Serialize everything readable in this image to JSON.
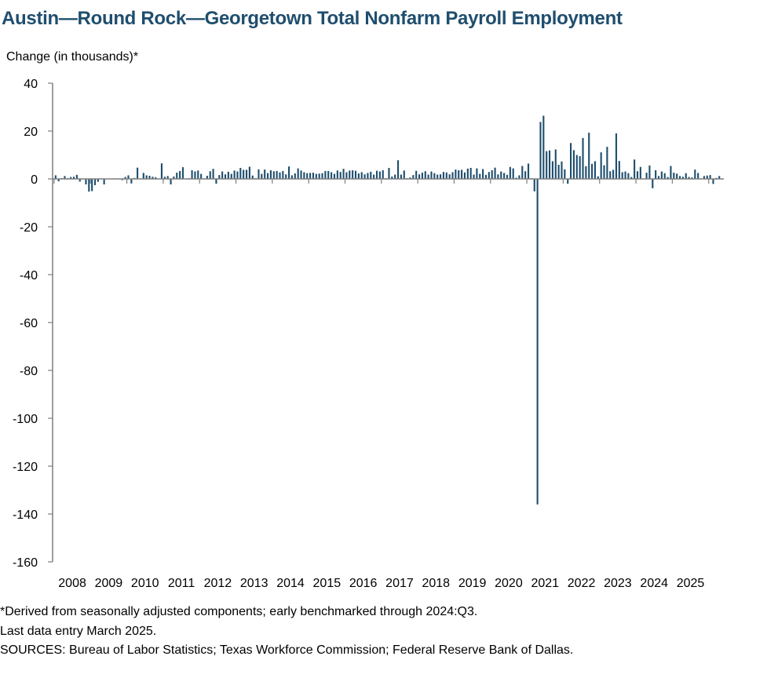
{
  "title": "Austin—Round Rock—Georgetown Total Nonfarm Payroll Employment",
  "notes": [
    "*Derived from seasonally adjusted components; early benchmarked through 2024:Q3.",
    "Last data entry March 2025.",
    "SOURCES: Bureau of Labor Statistics; Texas Workforce Commission; Federal Reserve Bank of Dallas."
  ],
  "colors": {
    "bar": "#1f4e6e",
    "title": "#1f4e6e",
    "axis": "#7f7f7f"
  },
  "chart_data": {
    "type": "bar",
    "ylabel": "Change (in thousands)*",
    "xlabel": "",
    "ylim": [
      -160,
      40
    ],
    "yticks": [
      "40",
      "20",
      "0",
      "-20",
      "-40",
      "-60",
      "-80",
      "-100",
      "-120",
      "-140",
      "-160"
    ],
    "xticks": [
      "2008",
      "2009",
      "2010",
      "2011",
      "2012",
      "2013",
      "2014",
      "2015",
      "2016",
      "2017",
      "2018",
      "2019",
      "2020",
      "2021",
      "2022",
      "2023",
      "2024",
      "2025"
    ],
    "x_start": "2008-01",
    "x_end": "2025-03",
    "frequency": "monthly",
    "grid": false,
    "legend": "none",
    "series": [
      {
        "values": [
          1.5,
          -1.0,
          0.3,
          1.2,
          0.3,
          0.8,
          0.9,
          1.7,
          -1.1,
          0.2,
          -2.3,
          -5.3,
          -5.1,
          -2.6,
          -1.2,
          0.2,
          -2.3,
          0.1,
          0.1,
          -0.1,
          0.2,
          0.2,
          -0.5,
          0.8,
          1.5,
          -1.9,
          0.4,
          4.7,
          0.1,
          2.5,
          1.5,
          1.3,
          0.9,
          0.7,
          0.2,
          6.5,
          0.9,
          1.2,
          -2.3,
          1.0,
          2.6,
          3.3,
          4.9,
          0.1,
          0.3,
          3.6,
          3.1,
          3.5,
          2.1,
          0.2,
          1.3,
          3.2,
          4.2,
          -2.0,
          1.6,
          3.1,
          1.9,
          3.0,
          2.1,
          3.5,
          3.1,
          4.6,
          3.8,
          3.8,
          5.1,
          1.4,
          0.3,
          4.0,
          2.1,
          3.9,
          2.4,
          3.6,
          3.2,
          3.3,
          2.7,
          3.3,
          1.9,
          5.2,
          1.5,
          2.3,
          4.4,
          3.5,
          2.8,
          2.4,
          2.5,
          2.6,
          2.1,
          2.2,
          2.4,
          3.3,
          3.3,
          2.8,
          2.1,
          3.5,
          2.9,
          4.2,
          2.8,
          3.5,
          3.6,
          3.4,
          2.3,
          2.8,
          1.9,
          2.5,
          3.0,
          1.8,
          3.4,
          3.1,
          3.6,
          0.3,
          4.6,
          1.0,
          1.8,
          7.8,
          1.8,
          3.5,
          0.3,
          0.6,
          1.6,
          3.4,
          1.9,
          2.6,
          3.2,
          1.8,
          3.1,
          2.4,
          1.8,
          1.9,
          2.9,
          2.7,
          1.9,
          2.8,
          3.9,
          3.6,
          3.8,
          2.7,
          4.3,
          4.6,
          1.8,
          4.4,
          2.1,
          4.1,
          1.7,
          2.9,
          3.6,
          4.7,
          1.9,
          3.1,
          2.5,
          1.7,
          5.0,
          4.4,
          0.5,
          1.5,
          5.4,
          3.2,
          6.4,
          0.3,
          -5.2,
          -136.0,
          23.8,
          26.4,
          11.6,
          11.9,
          7.4,
          12.3,
          5.9,
          7.3,
          4.0,
          -2.0,
          15.0,
          12.0,
          10.0,
          9.5,
          17.1,
          5.3,
          19.3,
          6.3,
          7.4,
          1.1,
          11.1,
          5.7,
          13.4,
          3.2,
          3.8,
          19.0,
          7.5,
          2.8,
          3.1,
          2.4,
          0.8,
          8.1,
          3.2,
          5.0,
          0.1,
          2.6,
          5.6,
          -3.9,
          3.6,
          1.2,
          3.1,
          2.4,
          0.8,
          5.4,
          2.6,
          2.2,
          1.2,
          0.9,
          2.4,
          0.8,
          0.6,
          3.9,
          2.5,
          0.2,
          1.2,
          1.4,
          1.6,
          -2.1,
          0.4,
          1.2,
          0.2
        ]
      }
    ]
  }
}
